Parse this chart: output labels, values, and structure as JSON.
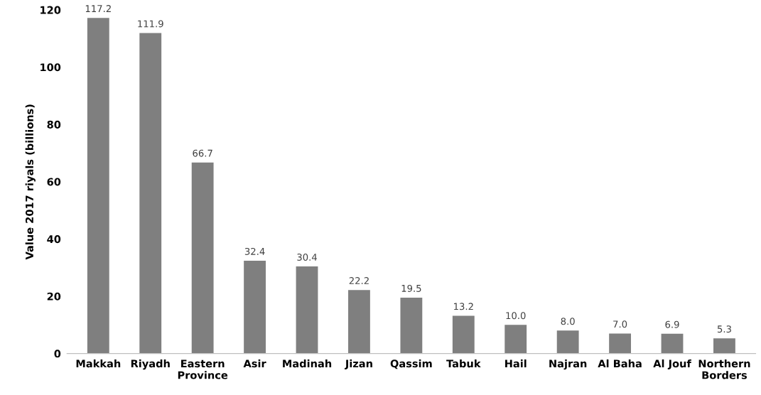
{
  "chart_data": {
    "type": "bar",
    "ylabel": "Value 2017 riyals (billions)",
    "categories": [
      "Makkah",
      "Riyadh",
      "Eastern\nProvince",
      "Asir",
      "Madinah",
      "Jizan",
      "Qassim",
      "Tabuk",
      "Hail",
      "Najran",
      "Al Baha",
      "Al Jouf",
      "Northern\nBorders"
    ],
    "values": [
      117.2,
      111.9,
      66.7,
      32.4,
      30.4,
      22.2,
      19.5,
      13.2,
      10.0,
      8.0,
      7.0,
      6.9,
      5.3
    ],
    "value_labels": [
      "117.2",
      "111.9",
      "66.7",
      "32.4",
      "30.4",
      "22.2",
      "19.5",
      "13.2",
      "10.0",
      "8.0",
      "7.0",
      "6.9",
      "5.3"
    ],
    "color": "#7f7f7f",
    "ylim": [
      0,
      120
    ],
    "yticks": [
      0,
      20,
      40,
      60,
      80,
      100,
      120
    ],
    "grid": false,
    "legend": false
  }
}
